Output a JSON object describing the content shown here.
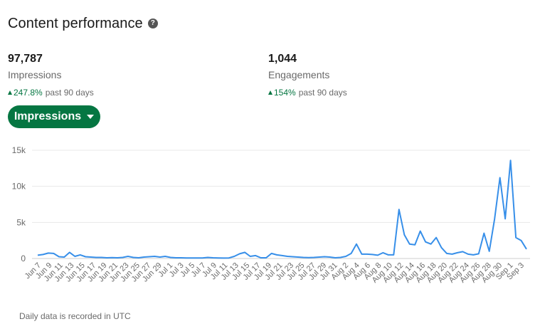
{
  "header": {
    "title": "Content performance",
    "help_icon": "question-circle-icon"
  },
  "metrics": [
    {
      "value": "97,787",
      "label": "Impressions",
      "change": "247.8%",
      "period": "past 90 days"
    },
    {
      "value": "1,044",
      "label": "Engagements",
      "change": "154%",
      "period": "past 90 days"
    }
  ],
  "metric_selector": {
    "label": "Impressions"
  },
  "footnote": "Daily data is recorded in UTC",
  "colors": {
    "accent": "#057642",
    "line": "#378FE9",
    "grid": "#E8E8E8"
  },
  "chart_data": {
    "type": "line",
    "y_tick_labels": [
      "0",
      "5k",
      "10k",
      "15k"
    ],
    "y_ticks": [
      0,
      5000,
      10000,
      15000
    ],
    "ylim": [
      0,
      15000
    ],
    "x_tick_labels": [
      "Jun 7",
      "Jun 9",
      "Jun 11",
      "Jun 13",
      "Jun 15",
      "Jun 17",
      "Jun 19",
      "Jun 21",
      "Jun 23",
      "Jun 25",
      "Jun 27",
      "Jun 29",
      "Jul 1",
      "Jul 3",
      "Jul 5",
      "Jul 7",
      "Jul 9",
      "Jul 11",
      "Jul 13",
      "Jul 15",
      "Jul 17",
      "Jul 19",
      "Jul 21",
      "Jul 23",
      "Jul 25",
      "Jul 27",
      "Jul 29",
      "Jul 31",
      "Aug 2",
      "Aug 4",
      "Aug 6",
      "Aug 8",
      "Aug 10",
      "Aug 12",
      "Aug 14",
      "Aug 16",
      "Aug 18",
      "Aug 20",
      "Aug 22",
      "Aug 24",
      "Aug 26",
      "Aug 28",
      "Aug 30",
      "Sep 1",
      "Sep 3"
    ],
    "grid": true,
    "series": [
      {
        "values": [
          450,
          550,
          750,
          700,
          250,
          200,
          850,
          300,
          500,
          250,
          200,
          150,
          150,
          100,
          120,
          100,
          150,
          300,
          150,
          100,
          200,
          250,
          300,
          200,
          300,
          150,
          100,
          100,
          80,
          80,
          80,
          80,
          150,
          100,
          80,
          60,
          80,
          300,
          650,
          850,
          300,
          400,
          100,
          100,
          700,
          500,
          400,
          300,
          250,
          200,
          150,
          120,
          150,
          200,
          250,
          200,
          100,
          150,
          300,
          700,
          2000,
          600,
          600,
          550,
          450,
          800,
          500,
          500,
          6800,
          3300,
          2000,
          1900,
          3800,
          2300,
          2000,
          2900,
          1500,
          700,
          600,
          800,
          950,
          600,
          500,
          650,
          3500,
          1000,
          5500,
          11200,
          5500,
          13600,
          2900,
          2500,
          1300
        ]
      }
    ]
  }
}
